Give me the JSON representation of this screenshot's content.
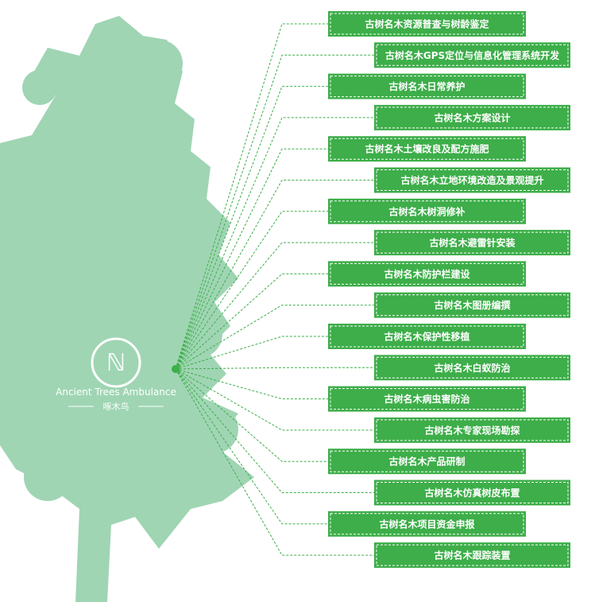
{
  "logo": {
    "name": "Ancient Trees Ambulance",
    "subtitle": "啄木鸟"
  },
  "nodes": [
    {
      "label": "古树名木资源普查与树龄鉴定"
    },
    {
      "label": "古树名木GPS定位与信息化管理系统开发"
    },
    {
      "label": "古树名木日常养护"
    },
    {
      "label": "古树名木方案设计"
    },
    {
      "label": "古树名木土壤改良及配方施肥"
    },
    {
      "label": "古树名木立地环境改造及景观提升"
    },
    {
      "label": "古树名木树洞修补"
    },
    {
      "label": "古树名木避雷针安装"
    },
    {
      "label": "古树名木防护栏建设"
    },
    {
      "label": "古树名木图册编撰"
    },
    {
      "label": "古树名木保护性移植"
    },
    {
      "label": "古树名木白蚁防治"
    },
    {
      "label": "古树名木病虫害防治"
    },
    {
      "label": "古树名木专家现场勘探"
    },
    {
      "label": "古树名木产品研制"
    },
    {
      "label": "古树名木仿真树皮布置"
    },
    {
      "label": "古树名木项目资金申报"
    },
    {
      "label": "古树名木跟踪装置"
    }
  ]
}
